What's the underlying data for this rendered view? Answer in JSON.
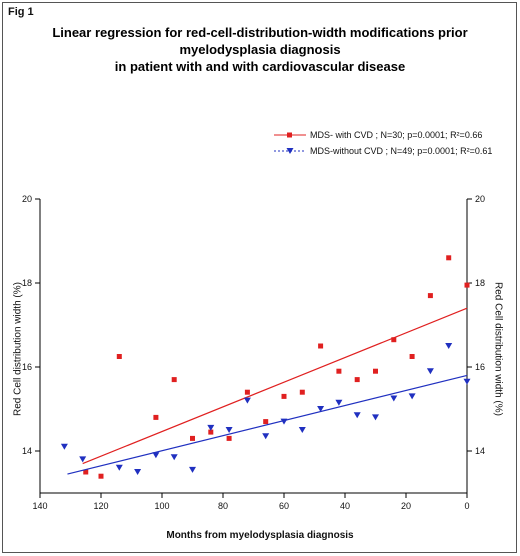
{
  "figure_label": "Fig 1",
  "chart_data": {
    "type": "scatter",
    "title_lines": [
      "Linear regression for red-cell-distribution-width modifications prior",
      "myelodysplasia diagnosis",
      "in patient with and with cardiovascular disease"
    ],
    "xlabel": "Months from myelodysplasia diagnosis",
    "ylabel": "Red Cell distribution width (%)",
    "ylabel_right": "Red Cell distribution width (%)",
    "xlim": [
      140,
      0
    ],
    "ylim": [
      13,
      20
    ],
    "x_ticks": [
      140,
      120,
      100,
      80,
      60,
      40,
      20,
      0
    ],
    "y_ticks": [
      14,
      16,
      18,
      20
    ],
    "grid": false,
    "legend_position": "top-right",
    "series": [
      {
        "name": "MDS- with CVD ; N=30; p=0.0001; R²=0.66",
        "color": "#e02020",
        "marker": "square",
        "points": [
          [
            125,
            13.5
          ],
          [
            120,
            13.4
          ],
          [
            114,
            16.25
          ],
          [
            102,
            14.8
          ],
          [
            96,
            15.7
          ],
          [
            90,
            14.3
          ],
          [
            84,
            14.45
          ],
          [
            78,
            14.3
          ],
          [
            72,
            15.4
          ],
          [
            66,
            14.7
          ],
          [
            60,
            15.3
          ],
          [
            54,
            15.4
          ],
          [
            48,
            16.5
          ],
          [
            42,
            15.9
          ],
          [
            36,
            15.7
          ],
          [
            30,
            15.9
          ],
          [
            24,
            16.65
          ],
          [
            18,
            16.25
          ],
          [
            12,
            17.7
          ],
          [
            6,
            18.6
          ],
          [
            0,
            17.95
          ]
        ],
        "fit": {
          "x": [
            126,
            0
          ],
          "y": [
            13.7,
            17.4
          ]
        }
      },
      {
        "name": "MDS-without CVD ; N=49; p=0.0001; R²=0.61",
        "color": "#2030c0",
        "marker": "triangle-down",
        "points": [
          [
            132,
            14.1
          ],
          [
            126,
            13.8
          ],
          [
            114,
            13.6
          ],
          [
            108,
            13.5
          ],
          [
            102,
            13.9
          ],
          [
            96,
            13.85
          ],
          [
            90,
            13.55
          ],
          [
            84,
            14.55
          ],
          [
            78,
            14.5
          ],
          [
            72,
            15.2
          ],
          [
            66,
            14.35
          ],
          [
            60,
            14.7
          ],
          [
            54,
            14.5
          ],
          [
            48,
            15.0
          ],
          [
            42,
            15.15
          ],
          [
            36,
            14.85
          ],
          [
            30,
            14.8
          ],
          [
            24,
            15.25
          ],
          [
            18,
            15.3
          ],
          [
            12,
            15.9
          ],
          [
            6,
            16.5
          ],
          [
            0,
            15.65
          ]
        ],
        "fit": {
          "x": [
            131,
            0
          ],
          "y": [
            13.45,
            15.8
          ]
        }
      }
    ]
  }
}
